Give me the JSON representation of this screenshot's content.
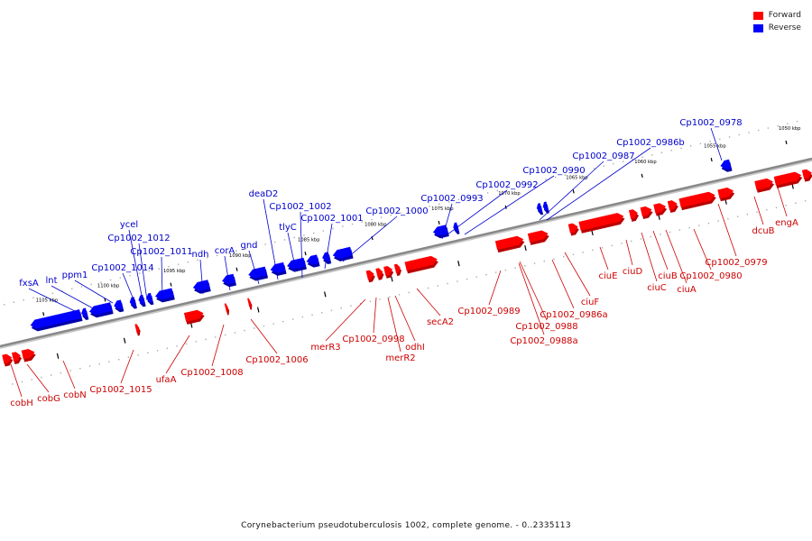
{
  "colors": {
    "forward": "#ff0000",
    "forward_dark": "#b80000",
    "reverse": "#0000ff",
    "reverse_dark": "#0000a8",
    "forward_label": "#cc0000",
    "reverse_label": "#0000cc",
    "axis": "#888888"
  },
  "legend": {
    "forward": "Forward",
    "reverse": "Reverse"
  },
  "caption": "Corynebacterium pseudotuberculosis 1002, complete genome. - 0..2335113",
  "ticks": [
    "1050 kbp",
    "1055 kbp",
    "1060 kbp",
    "1065 kbp",
    "1070 kbp",
    "1075 kbp",
    "1080 kbp",
    "1085 kbp",
    "1090 kbp",
    "1095 kbp",
    "1100 kbp",
    "1105 kbp"
  ],
  "reverse_labels": [
    "fxsA",
    "lnt",
    "ppm1",
    "Cp1002_1014",
    "ycel",
    "Cp1002_1012",
    "Cp1002_1011",
    "ndh",
    "corA",
    "gnd",
    "deaD2",
    "Cp1002_1002",
    "tlyC",
    "Cp1002_1001",
    "Cp1002_1000",
    "Cp1002_0993",
    "Cp1002_0992",
    "Cp1002_0990",
    "Cp1002_0987",
    "Cp1002_0986b",
    "Cp1002_0978"
  ],
  "forward_labels": [
    "cobH",
    "cobG",
    "cobN",
    "Cp1002_1015",
    "ufaA",
    "Cp1002_1008",
    "Cp1002_1006",
    "merR3",
    "Cp1002_0998",
    "merR2",
    "odhI",
    "secA2",
    "Cp1002_0989",
    "Cp1002_0988",
    "Cp1002_0988a",
    "Cp1002_0986a",
    "ciuF",
    "ciuE",
    "ciuD",
    "ciuC",
    "ciuB",
    "ciuA",
    "Cp1002_0980",
    "Cp1002_0979",
    "dcuB",
    "engA"
  ]
}
